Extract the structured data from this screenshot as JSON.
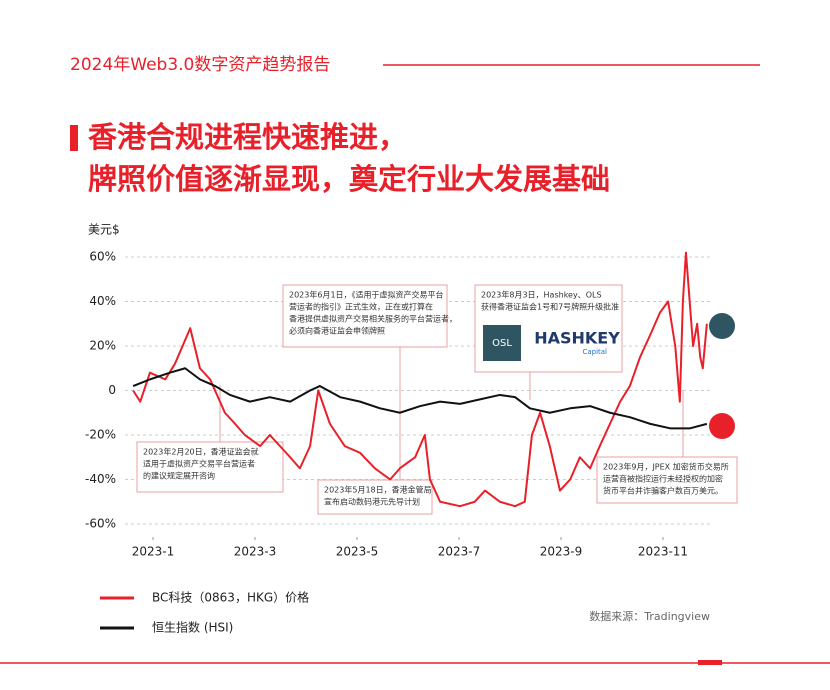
{
  "header": {
    "title": "2024年Web3.0数字资产趋势报告"
  },
  "title_lines": [
    "香港合规进程快速推进，",
    "牌照价值逐渐显现，奠定行业大发展基础"
  ],
  "chart_data": {
    "type": "line",
    "y_label": "美元$",
    "xlim": [
      0.5,
      12
    ],
    "xticks": [
      {
        "value": 1,
        "label": "2023-1"
      },
      {
        "value": 3,
        "label": "2023-3"
      },
      {
        "value": 5,
        "label": "2023-5"
      },
      {
        "value": 7,
        "label": "2023-7"
      },
      {
        "value": 9,
        "label": "2023-9"
      },
      {
        "value": 11,
        "label": "2023-11"
      }
    ],
    "ylim": [
      -65,
      65
    ],
    "yticks": [
      {
        "value": 60,
        "label": "60%"
      },
      {
        "value": 40,
        "label": "40%"
      },
      {
        "value": 20,
        "label": "20%"
      },
      0,
      {
        "value": -20,
        "label": "-20%"
      },
      {
        "value": -40,
        "label": "-40%"
      },
      {
        "value": -60,
        "label": "-60%"
      }
    ],
    "series": [
      {
        "name": "BC科技（0863，HKG）价格",
        "color": "#e8202a",
        "x": [
          0.61,
          0.75,
          0.94,
          1.24,
          1.43,
          1.73,
          1.92,
          2.12,
          2.41,
          2.61,
          2.8,
          3.1,
          3.29,
          3.69,
          3.88,
          4.08,
          4.24,
          4.47,
          4.76,
          5.06,
          5.35,
          5.65,
          5.84,
          6.14,
          6.33,
          6.43,
          6.63,
          7.02,
          7.31,
          7.51,
          7.8,
          8.1,
          8.29,
          8.43,
          8.59,
          8.78,
          8.98,
          9.18,
          9.37,
          9.57,
          9.76,
          9.96,
          10.16,
          10.35,
          10.55,
          10.75,
          10.94,
          11.1,
          11.24,
          11.33,
          11.39,
          11.45,
          11.59,
          11.67,
          11.73,
          11.78,
          11.86
        ],
        "values": [
          0,
          -5,
          8,
          5,
          12,
          28,
          10,
          5,
          -10,
          -15,
          -20,
          -25,
          -20,
          -30,
          -35,
          -25,
          0,
          -15,
          -25,
          -28,
          -35,
          -40,
          -35,
          -30,
          -20,
          -40,
          -50,
          -52,
          -50,
          -45,
          -50,
          -52,
          -50,
          -20,
          -10,
          -25,
          -45,
          -40,
          -30,
          -35,
          -25,
          -15,
          -5,
          2,
          15,
          25,
          35,
          40,
          20,
          -5,
          40,
          62,
          20,
          30,
          15,
          10,
          30
        ]
      },
      {
        "name": "恒生指数 (HSI)",
        "color": "#111111",
        "x": [
          0.61,
          0.94,
          1.33,
          1.63,
          1.92,
          2.22,
          2.51,
          2.9,
          3.29,
          3.69,
          4.08,
          4.27,
          4.67,
          5.06,
          5.45,
          5.84,
          6.24,
          6.63,
          7.02,
          7.41,
          7.8,
          8.1,
          8.39,
          8.78,
          9.18,
          9.57,
          9.96,
          10.35,
          10.75,
          11.14,
          11.53,
          11.86
        ],
        "values": [
          2,
          5,
          8,
          10,
          5,
          2,
          -2,
          -5,
          -3,
          -5,
          0,
          2,
          -3,
          -5,
          -8,
          -10,
          -7,
          -5,
          -6,
          -4,
          -2,
          -3,
          -8,
          -10,
          -8,
          -7,
          -10,
          -12,
          -15,
          -17,
          -17,
          -15
        ]
      }
    ],
    "annotations": [
      {
        "lines": [
          "2023年6月1日，《适用于虚拟资产交易平台",
          "营运者的指引》正式生效，正在或打算在",
          "香港提供虚拟资产交易相关服务的平台营运者，",
          "必须向香港证监会申领牌照"
        ]
      },
      {
        "lines": [
          "2023年2月20日，香港证监会就",
          "适用于虚拟资产交易平台营运者",
          "的建议规定展开咨询"
        ]
      },
      {
        "lines": [
          "2023年5月18日，香港金管局",
          "宣布启动数码港元先导计划"
        ]
      },
      {
        "lines": [
          "2023年8月3日，Hashkey、OLS",
          "获得香港证监会1号和7号牌照升级批准"
        ],
        "logos": [
          "OSL",
          "HASHKEY",
          "Capital"
        ]
      },
      {
        "lines": [
          "2023年9月，JPEX 加密货币交易所",
          "运营商被指控运行未经授权的加密",
          "货币平台并诈骗客户数百万美元。"
        ]
      }
    ],
    "source": "数据来源：Tradingview"
  }
}
